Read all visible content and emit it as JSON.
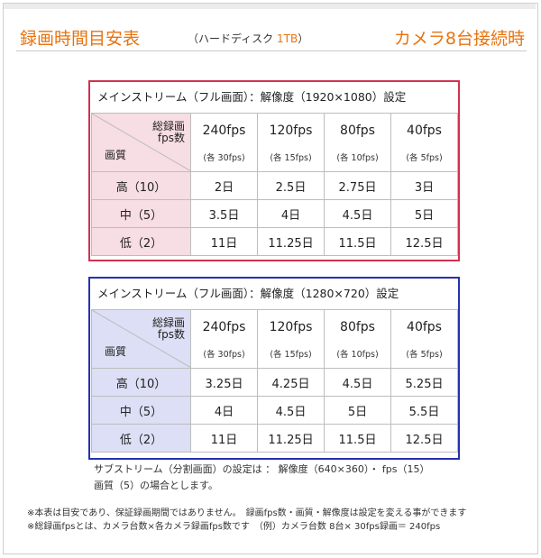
{
  "header": {
    "title": "録画時間目安表",
    "subtitle_prefix": "（ハードディスク ",
    "subtitle_tb": "1TB",
    "subtitle_suffix": "）",
    "right": "カメラ8台接続時"
  },
  "tables": [
    {
      "heading": "メインストリーム（フル画面）：解像度（1920×1080）設定",
      "corner_top1": "総録画",
      "corner_top2": "fps数",
      "corner_bottom": "画質",
      "columns": [
        {
          "fps": "240fps",
          "note": "(各 30fps)"
        },
        {
          "fps": "120fps",
          "note": "(各 15fps)"
        },
        {
          "fps": "80fps",
          "note": "(各 10fps)"
        },
        {
          "fps": "40fps",
          "note": "(各 5fps)"
        }
      ],
      "rows": [
        {
          "quality": "高（10）",
          "values": [
            "2日",
            "2.5日",
            "2.75日",
            "3日"
          ]
        },
        {
          "quality": "中（5）",
          "values": [
            "3.5日",
            "4日",
            "4.5日",
            "5日"
          ]
        },
        {
          "quality": "低（2）",
          "values": [
            "11日",
            "11.25日",
            "11.5日",
            "12.5日"
          ]
        }
      ]
    },
    {
      "heading": "メインストリーム（フル画面）：解像度（1280×720）設定",
      "corner_top1": "総録画",
      "corner_top2": "fps数",
      "corner_bottom": "画質",
      "columns": [
        {
          "fps": "240fps",
          "note": "(各 30fps)"
        },
        {
          "fps": "120fps",
          "note": "(各 15fps)"
        },
        {
          "fps": "80fps",
          "note": "(各 10fps)"
        },
        {
          "fps": "40fps",
          "note": "(各 5fps)"
        }
      ],
      "rows": [
        {
          "quality": "高（10）",
          "values": [
            "3.25日",
            "4.25日",
            "4.5日",
            "5.25日"
          ]
        },
        {
          "quality": "中（5）",
          "values": [
            "4日",
            "4.5日",
            "5日",
            "5.5日"
          ]
        },
        {
          "quality": "低（2）",
          "values": [
            "11日",
            "11.25日",
            "11.5日",
            "12.5日"
          ]
        }
      ]
    }
  ],
  "substream_note": {
    "line1": "サブストリーム（分割画面）の設定は ： 解像度（640×360）・ fps（15）",
    "line2": "画質（5）の場合とします。"
  },
  "footnotes": [
    "※本表は目安であり、保証録画期間ではありません。　録画fps数・画質・解像度は設定を変える事ができます",
    "※総録画fpsとは、カメラ台数×各カメラ録画fps数です　（例）カメラ台数 8台× 30fps録画＝ 240fps"
  ],
  "colors": {
    "accent": "#e8730f",
    "table1_border": "#d0324f",
    "table1_header_bg": "#f7dde4",
    "table2_border": "#2431b0",
    "table2_header_bg": "#dcdff5"
  }
}
